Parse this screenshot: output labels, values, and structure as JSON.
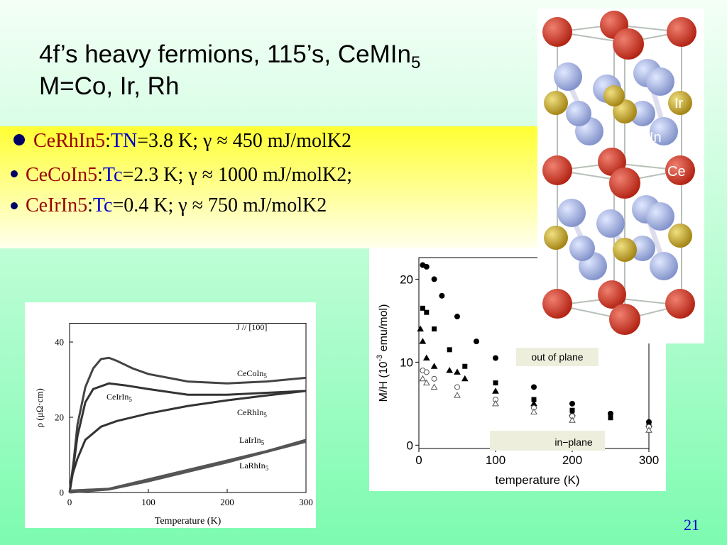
{
  "slide": {
    "title": {
      "text": "4f’s heavy fermions, 115’s, CeMIn",
      "sub": "5"
    },
    "title_line2": "M=Co, Ir, Rh",
    "page_number": "21"
  },
  "bullets": [
    {
      "parts": [
        "CeRhIn5",
        ":",
        "TN",
        "=3.8 K; γ ≈ 450 mJ/molK2"
      ]
    },
    {
      "parts": [
        "CeCoIn5",
        ":",
        "Tc",
        "=2.3 K; γ ≈  1000 mJ/molK2;"
      ]
    },
    {
      "parts": [
        "CeIrIn5",
        ":",
        "Tc",
        "=0.4 K; γ ≈ 750 mJ/molK2"
      ]
    }
  ],
  "crystal": {
    "labels": [
      "Ir",
      "In",
      "Ce"
    ]
  },
  "chart_data": [
    {
      "type": "line",
      "x_label": "Temperature (K)",
      "y_label": "ρ (μΩ·cm)",
      "annotations": [
        "J // [100]"
      ],
      "xlim": [
        0,
        300
      ],
      "ylim": [
        0,
        45
      ],
      "xticks": [
        0,
        100,
        200,
        300
      ],
      "yticks": [
        0,
        20,
        40
      ],
      "series": [
        {
          "name": "CeCoIn",
          "name_sub": "5",
          "color": "#444444",
          "x": [
            0,
            5,
            10,
            20,
            30,
            40,
            50,
            60,
            80,
            100,
            150,
            200,
            250,
            300
          ],
          "values": [
            0,
            8,
            18,
            28,
            33,
            35.5,
            35.8,
            35,
            33,
            31.5,
            29.5,
            29,
            29.5,
            30.5
          ]
        },
        {
          "name": "CeIrIn",
          "name_sub": "5",
          "color": "#333333",
          "x": [
            0,
            5,
            10,
            20,
            30,
            50,
            70,
            100,
            150,
            200,
            250,
            300
          ],
          "values": [
            0,
            7,
            15,
            24,
            27.5,
            29,
            28.5,
            27.5,
            26,
            26,
            26.5,
            27
          ]
        },
        {
          "name": "CeRhIn",
          "name_sub": "5",
          "color": "#333333",
          "x": [
            0,
            4,
            10,
            20,
            40,
            60,
            100,
            150,
            200,
            250,
            300
          ],
          "values": [
            0,
            5,
            9,
            14,
            17.5,
            19,
            21,
            23,
            24.5,
            25.8,
            27
          ]
        },
        {
          "name": "LaIrIn",
          "name_sub": "5",
          "color": "#555555",
          "x": [
            0,
            50,
            100,
            150,
            200,
            250,
            300
          ],
          "values": [
            0.5,
            1,
            3.5,
            6,
            8.5,
            11,
            14
          ]
        },
        {
          "name": "LaRhIn",
          "name_sub": "5",
          "color": "#555555",
          "x": [
            0,
            50,
            100,
            150,
            200,
            250,
            300
          ],
          "values": [
            0,
            0.8,
            3,
            5.5,
            8,
            10.8,
            13.5
          ]
        }
      ]
    },
    {
      "type": "scatter",
      "x_label": "temperature (K)",
      "y_label": {
        "text": "M/H (10",
        "sup": "-3",
        "tail": " emu/mol)"
      },
      "annotations": [
        "out of plane",
        "in−plane"
      ],
      "xlim": [
        0,
        300
      ],
      "ylim": [
        -0.4,
        22.6
      ],
      "xticks": [
        0,
        100,
        200,
        300
      ],
      "yticks": [
        0,
        10,
        20
      ],
      "series": [
        {
          "marker": "circle",
          "filled": true,
          "color": "#000000",
          "x": [
            5,
            10,
            20,
            30,
            50,
            75,
            100,
            150,
            200,
            250,
            300
          ],
          "values": [
            21.7,
            21.5,
            20,
            18,
            15.5,
            12.5,
            10.5,
            7,
            5,
            3.8,
            2.8
          ]
        },
        {
          "marker": "square",
          "filled": true,
          "color": "#000000",
          "x": [
            5,
            10,
            20,
            40,
            60,
            100,
            150,
            200,
            250,
            300
          ],
          "values": [
            16.5,
            16,
            14,
            11.5,
            9.5,
            7.5,
            5.5,
            4.2,
            3.3,
            2.6
          ]
        },
        {
          "marker": "triangle",
          "filled": true,
          "color": "#000000",
          "x": [
            2,
            5,
            10,
            20,
            40,
            50,
            60,
            100,
            150,
            200,
            300
          ],
          "values": [
            14,
            12.5,
            10.5,
            9.5,
            9,
            8.8,
            8,
            6.5,
            5,
            3.8,
            2.5
          ]
        },
        {
          "marker": "circle",
          "filled": false,
          "color": "#555555",
          "x": [
            5,
            10,
            20,
            50,
            100,
            150,
            200,
            300
          ],
          "values": [
            9,
            8.8,
            8,
            7,
            5.5,
            4.5,
            3.5,
            2.2
          ]
        },
        {
          "marker": "triangle",
          "filled": false,
          "color": "#555555",
          "x": [
            5,
            10,
            20,
            50,
            100,
            150,
            200,
            300
          ],
          "values": [
            8,
            7.5,
            7,
            6,
            5,
            4,
            3,
            1.8
          ]
        }
      ]
    }
  ]
}
